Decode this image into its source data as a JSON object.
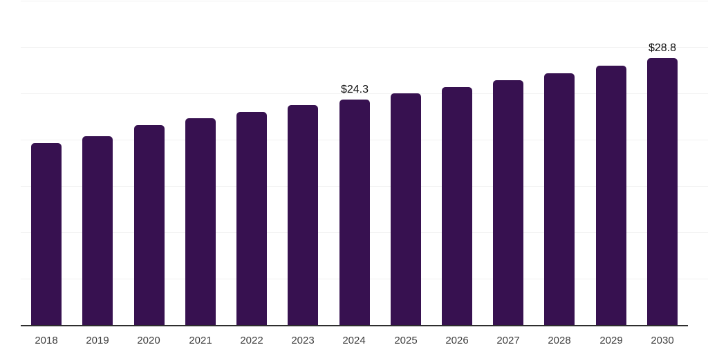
{
  "chart_data": {
    "type": "bar",
    "title": "",
    "xlabel": "",
    "ylabel": "",
    "categories": [
      "2018",
      "2019",
      "2020",
      "2021",
      "2022",
      "2023",
      "2024",
      "2025",
      "2026",
      "2027",
      "2028",
      "2029",
      "2030"
    ],
    "values": [
      19.6,
      20.4,
      21.6,
      22.3,
      23.0,
      23.7,
      24.3,
      25.0,
      25.7,
      26.4,
      27.2,
      28.0,
      28.8
    ],
    "data_labels": [
      {
        "category": "2024",
        "text": "$24.3"
      },
      {
        "category": "2030",
        "text": "$28.8"
      }
    ],
    "ylim": [
      0,
      35
    ],
    "gridline_step": 5,
    "grid": true,
    "legend": "none",
    "colors": {
      "bar": "#371150",
      "gridline": "#f1f1f1",
      "axis_line": "#2e2e2e",
      "tick_label": "#3d3d3d",
      "data_label": "#111111",
      "background": "#ffffff"
    }
  }
}
